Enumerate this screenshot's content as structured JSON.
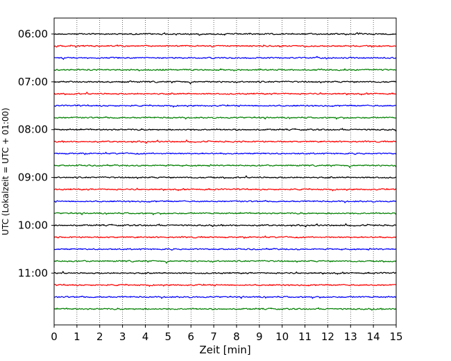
{
  "chart_data": {
    "type": "line",
    "title": "",
    "xlabel": "Zeit  [min]",
    "ylabel": "UTC (Lokalzeit = UTC + 01:00)",
    "xlim": [
      0,
      15
    ],
    "x_ticks": [
      0,
      1,
      2,
      3,
      4,
      5,
      6,
      7,
      8,
      9,
      10,
      11,
      12,
      13,
      14,
      15
    ],
    "x_tick_labels": [
      "0",
      "1",
      "2",
      "3",
      "4",
      "5",
      "6",
      "7",
      "8",
      "9",
      "10",
      "11",
      "12",
      "13",
      "14",
      "15"
    ],
    "y_ticks": [
      "06:00",
      "07:00",
      "08:00",
      "09:00",
      "10:00",
      "11:00"
    ],
    "y_range": [
      "05:40",
      "12:05"
    ],
    "grid": {
      "x": true,
      "x_style": "dotted",
      "y": false
    },
    "legend": "none",
    "trace_interval_minutes": 15,
    "trace_color_cycle": [
      "#000000",
      "#ff0000",
      "#0000ff",
      "#008000"
    ],
    "traces": [
      {
        "start": "06:00",
        "color": "#000000"
      },
      {
        "start": "06:15",
        "color": "#ff0000"
      },
      {
        "start": "06:30",
        "color": "#0000ff"
      },
      {
        "start": "06:45",
        "color": "#008000"
      },
      {
        "start": "07:00",
        "color": "#000000"
      },
      {
        "start": "07:15",
        "color": "#ff0000"
      },
      {
        "start": "07:30",
        "color": "#0000ff"
      },
      {
        "start": "07:45",
        "color": "#008000"
      },
      {
        "start": "08:00",
        "color": "#000000"
      },
      {
        "start": "08:15",
        "color": "#ff0000"
      },
      {
        "start": "08:30",
        "color": "#0000ff"
      },
      {
        "start": "08:45",
        "color": "#008000"
      },
      {
        "start": "09:00",
        "color": "#000000"
      },
      {
        "start": "09:15",
        "color": "#ff0000"
      },
      {
        "start": "09:30",
        "color": "#0000ff"
      },
      {
        "start": "09:45",
        "color": "#008000"
      },
      {
        "start": "10:00",
        "color": "#000000"
      },
      {
        "start": "10:15",
        "color": "#ff0000"
      },
      {
        "start": "10:30",
        "color": "#0000ff"
      },
      {
        "start": "10:45",
        "color": "#008000"
      },
      {
        "start": "11:00",
        "color": "#000000"
      },
      {
        "start": "11:15",
        "color": "#ff0000"
      },
      {
        "start": "11:30",
        "color": "#0000ff"
      },
      {
        "start": "11:45",
        "color": "#008000"
      }
    ]
  }
}
